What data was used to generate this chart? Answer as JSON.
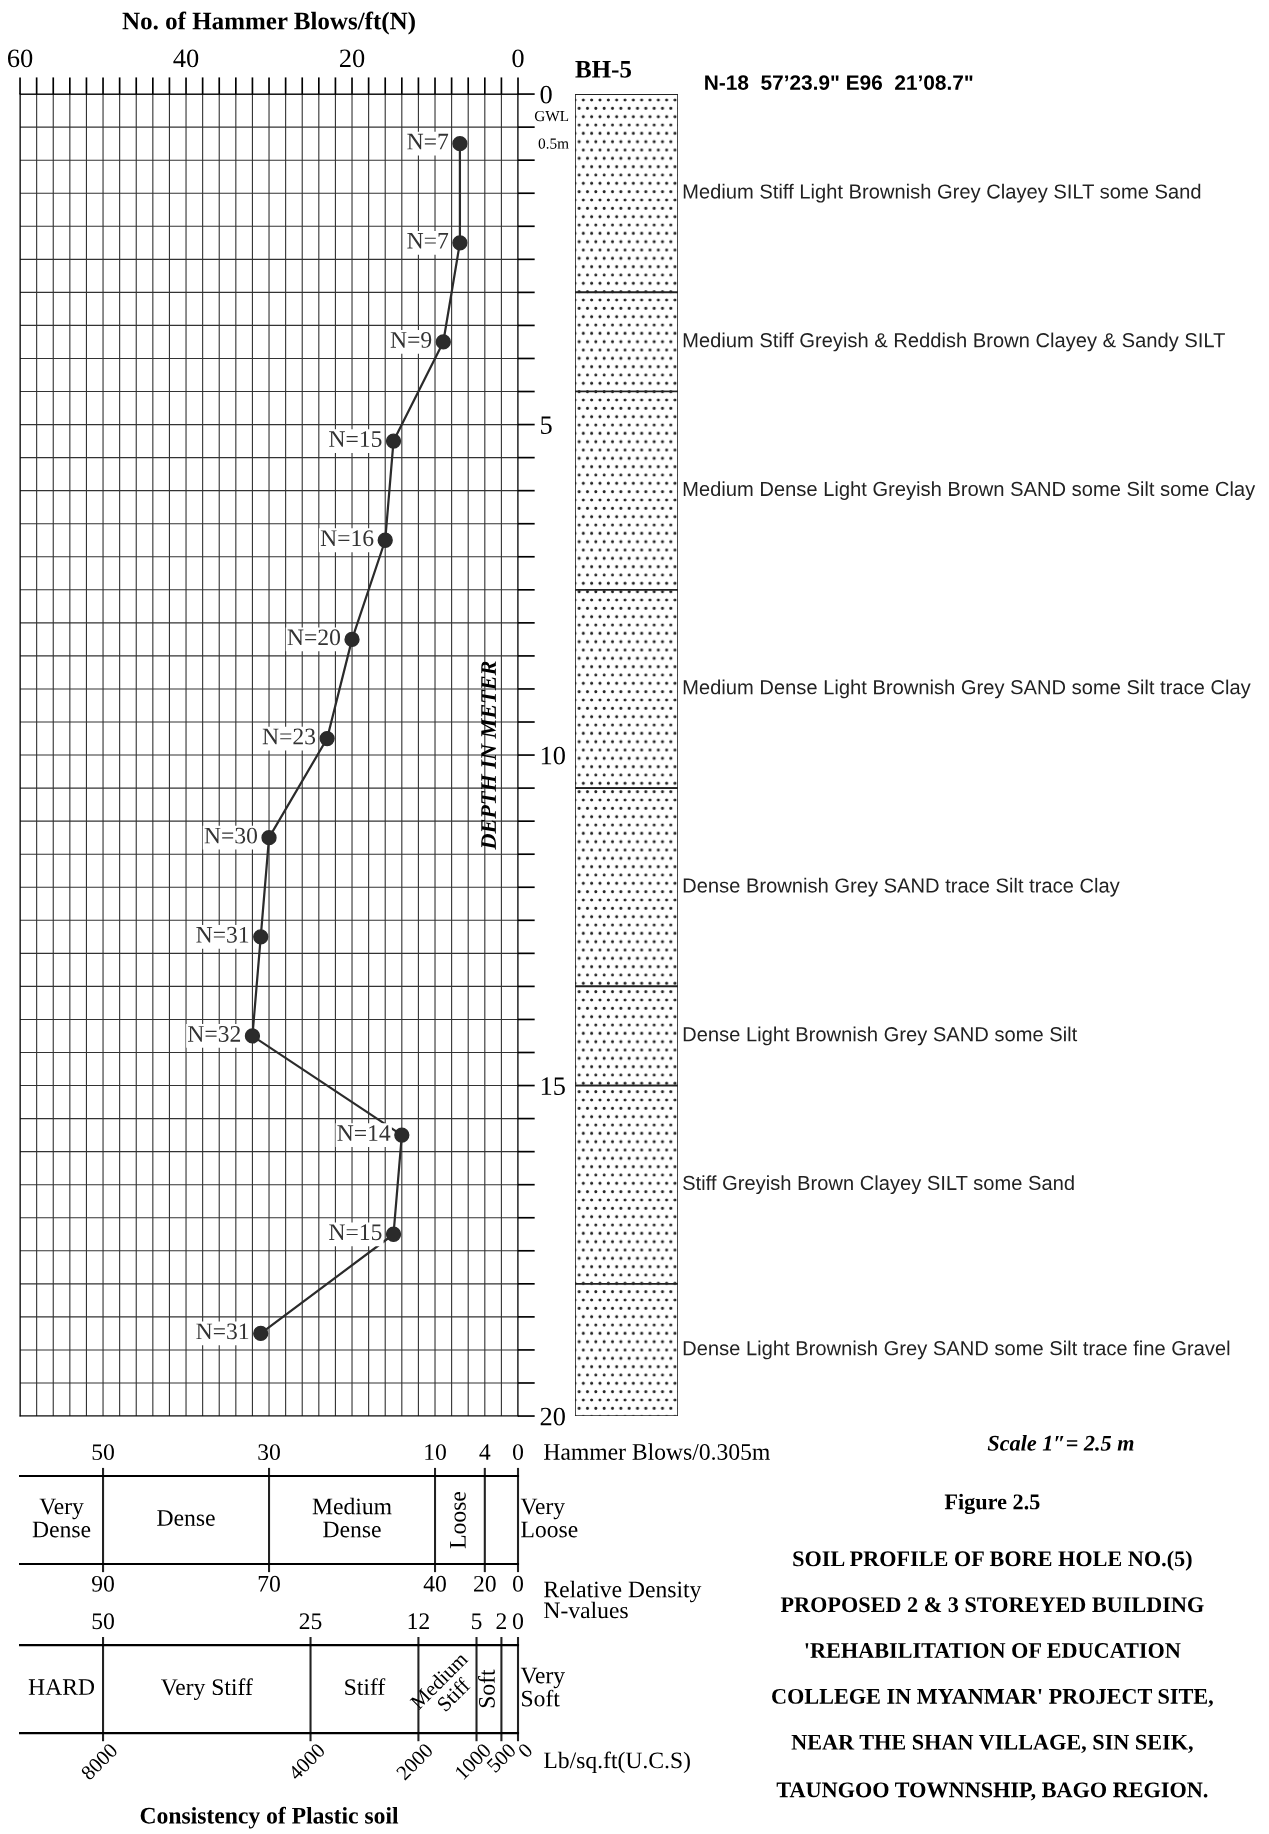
{
  "chart_data": [
    {
      "type": "line",
      "orientation": "horizontal",
      "xlabel": "No. of Hammer Blows/ft(N)",
      "ylabel": "DEPTH IN METER",
      "xlim": [
        60,
        0
      ],
      "ylim": [
        20,
        0
      ],
      "xticks": [
        0,
        {
          "value": 2,
          "label": null
        },
        {
          "value": 4,
          "label": null
        },
        {
          "value": 6,
          "label": null
        },
        {
          "value": 8,
          "label": null
        },
        {
          "value": 10,
          "label": null
        },
        {
          "value": 12,
          "label": null
        },
        {
          "value": 14,
          "label": null
        },
        {
          "value": 16,
          "label": null
        },
        {
          "value": 18,
          "label": null
        },
        20,
        {
          "value": 22,
          "label": null
        },
        {
          "value": 24,
          "label": null
        },
        {
          "value": 26,
          "label": null
        },
        {
          "value": 28,
          "label": null
        },
        {
          "value": 30,
          "label": null
        },
        {
          "value": 32,
          "label": null
        },
        {
          "value": 34,
          "label": null
        },
        {
          "value": 36,
          "label": null
        },
        {
          "value": 38,
          "label": null
        },
        40,
        {
          "value": 42,
          "label": null
        },
        {
          "value": 44,
          "label": null
        },
        {
          "value": 46,
          "label": null
        },
        {
          "value": 48,
          "label": null
        },
        {
          "value": 50,
          "label": null
        },
        {
          "value": 52,
          "label": null
        },
        {
          "value": 54,
          "label": null
        },
        {
          "value": 56,
          "label": null
        },
        {
          "value": 58,
          "label": null
        },
        60
      ],
      "yticks": [
        0,
        {
          "value": 0.5,
          "label": null
        },
        {
          "value": 1,
          "label": null
        },
        {
          "value": 1.5,
          "label": null
        },
        {
          "value": 2,
          "label": null
        },
        {
          "value": 2.5,
          "label": null
        },
        {
          "value": 3,
          "label": null
        },
        {
          "value": 3.5,
          "label": null
        },
        {
          "value": 4,
          "label": null
        },
        {
          "value": 4.5,
          "label": null
        },
        5,
        {
          "value": 5.5,
          "label": null
        },
        {
          "value": 6,
          "label": null
        },
        {
          "value": 6.5,
          "label": null
        },
        {
          "value": 7,
          "label": null
        },
        {
          "value": 7.5,
          "label": null
        },
        {
          "value": 8,
          "label": null
        },
        {
          "value": 8.5,
          "label": null
        },
        {
          "value": 9,
          "label": null
        },
        {
          "value": 9.5,
          "label": null
        },
        10,
        {
          "value": 10.5,
          "label": null
        },
        {
          "value": 11,
          "label": null
        },
        {
          "value": 11.5,
          "label": null
        },
        {
          "value": 12,
          "label": null
        },
        {
          "value": 12.5,
          "label": null
        },
        {
          "value": 13,
          "label": null
        },
        {
          "value": 13.5,
          "label": null
        },
        {
          "value": 14,
          "label": null
        },
        {
          "value": 14.5,
          "label": null
        },
        15,
        {
          "value": 15.5,
          "label": null
        },
        {
          "value": 16,
          "label": null
        },
        {
          "value": 16.5,
          "label": null
        },
        {
          "value": 17,
          "label": null
        },
        {
          "value": 17.5,
          "label": null
        },
        {
          "value": 18,
          "label": null
        },
        {
          "value": 18.5,
          "label": null
        },
        {
          "value": 19,
          "label": null
        },
        {
          "value": 19.5,
          "label": null
        },
        20
      ],
      "grid": true,
      "marker": "circle",
      "line_style": "solid",
      "series": [
        {
          "color": "#2b2b2b",
          "x": [
            0.75,
            2.25,
            3.75,
            5.25,
            6.75,
            8.25,
            9.75,
            11.25,
            12.75,
            14.25,
            15.75,
            17.25,
            18.75
          ],
          "values": [
            7,
            7,
            9,
            15,
            16,
            20,
            23,
            30,
            31,
            32,
            14,
            15,
            31
          ],
          "value_labels": [
            "N=7",
            "N=7",
            "N=9",
            "N=15",
            "N=16",
            "N=20",
            "N=23",
            "N=30",
            "N=31",
            "N=32",
            "N=14",
            "N=15",
            "N=31"
          ]
        }
      ],
      "annotations": [
        "GWL",
        "0.5m",
        "Scale 1″= 2.5 m",
        "Figure 2.5",
        "SOIL PROFILE OF BORE HOLE NO.(5)",
        "PROPOSED 2 & 3 STOREYED BUILDING",
        "'REHABILITATION OF EDUCATION",
        "COLLEGE IN MYANMAR' PROJECT SITE,",
        "NEAR THE SHAN VILLAGE, SIN SEIK,",
        "TAUNGOO TOWNNSHIP, BAGO REGION."
      ]
    },
    {
      "type": "other",
      "title": "BH-5",
      "subtitle": "N-18  57’23.9\" E96  21’08.7\"",
      "annotations": [
        "Medium Stiff Light Brownish Grey Clayey SILT some Sand",
        "Medium Stiff Greyish & Reddish Brown Clayey & Sandy SILT",
        "Medium Dense Light Greyish Brown SAND some Silt some Clay",
        "Medium Dense Light Brownish Grey SAND some Silt trace Clay",
        "Dense Brownish Grey SAND trace Silt trace Clay",
        "Dense Light Brownish Grey SAND some Silt",
        "Stiff Greyish Brown Clayey SILT some Sand",
        "Dense Light Brownish Grey SAND some Silt trace fine Gravel"
      ]
    },
    {
      "type": "other",
      "annotations": [
        "50",
        "30",
        "10",
        "4",
        "0",
        "Hammer Blows/0.305m",
        "Very Dense",
        "Dense",
        "Medium Dense",
        "Loose",
        "Very Loose",
        "90",
        "70",
        "40",
        "20",
        "0",
        "Relative Density"
      ]
    },
    {
      "type": "other",
      "title": "Consistency of Plastic soil",
      "annotations": [
        "50",
        "25",
        "12",
        "5",
        "2",
        "0",
        "N-values",
        "HARD",
        "Very Stiff",
        "Stiff",
        "Medium Stiff",
        "Soft",
        "Very Soft",
        "8000",
        "4000",
        "2000",
        "1000",
        "500",
        "0",
        "Lb/sq.ft(U.C.S)"
      ]
    }
  ]
}
